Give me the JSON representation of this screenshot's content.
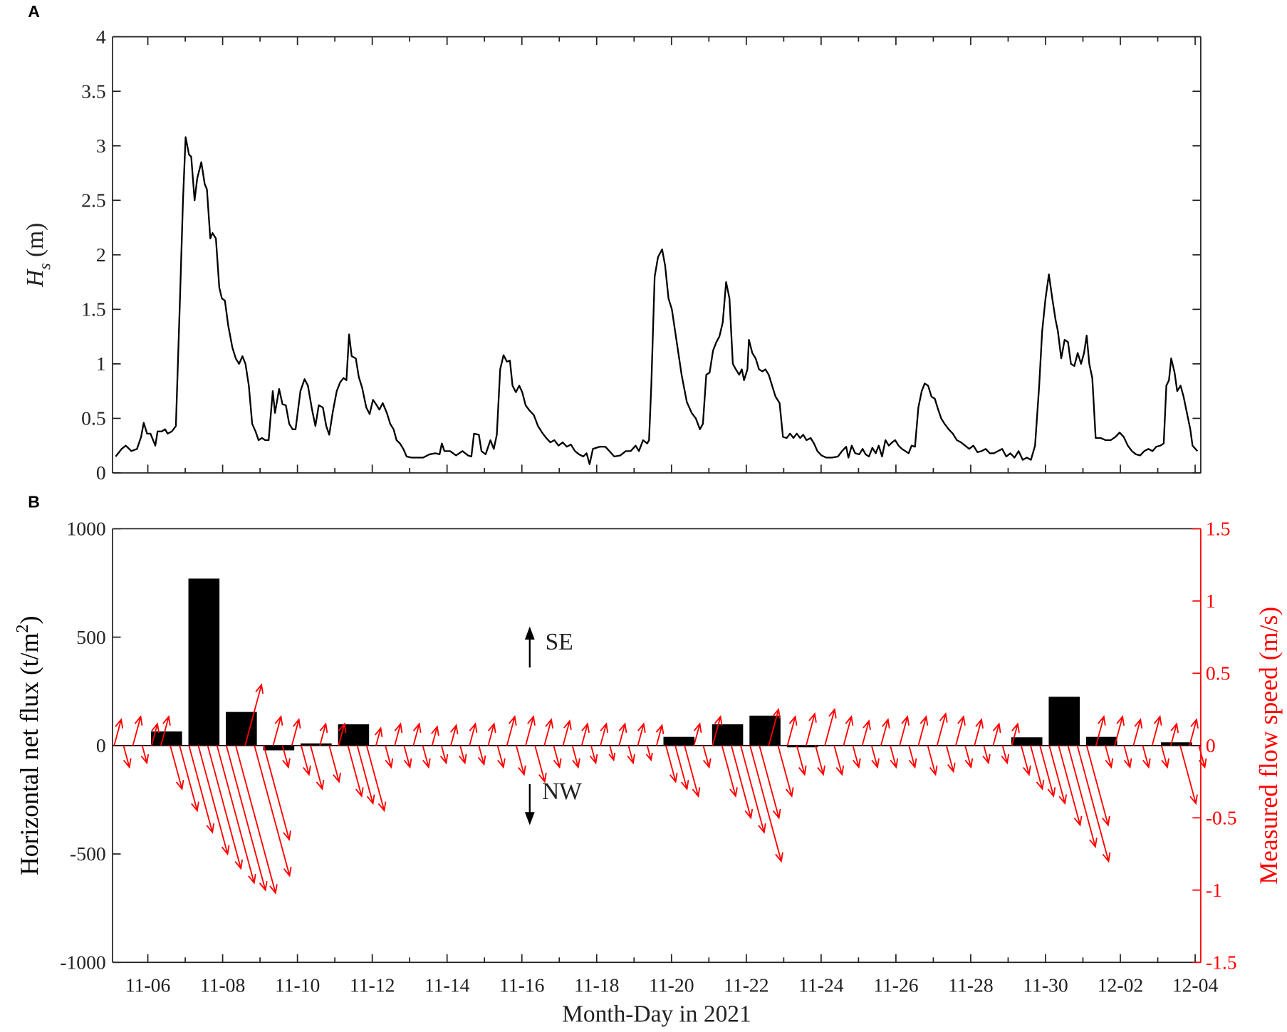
{
  "chart_data": [
    {
      "type": "line",
      "panel": "A",
      "y_label": {
        "symbol": "H",
        "subscript": "s",
        "unit": "(m)"
      },
      "color": "#000000",
      "xlim": [
        5.056,
        34.15
      ],
      "ylim": [
        0,
        4
      ],
      "yticks": [
        0,
        0.5,
        1,
        1.5,
        2,
        2.5,
        3,
        3.5,
        4
      ],
      "xticks": [
        6,
        8,
        10,
        12,
        14,
        16,
        18,
        20,
        22,
        24,
        26,
        28,
        30,
        32,
        34
      ],
      "xminorticks": [
        7,
        9,
        11,
        13,
        15,
        17,
        19,
        21,
        23,
        25,
        27,
        29,
        31,
        33
      ],
      "x": [
        5.14,
        5.3,
        5.41,
        5.56,
        5.71,
        5.82,
        5.89,
        5.98,
        6.07,
        6.2,
        6.26,
        6.37,
        6.46,
        6.53,
        6.64,
        6.75,
        6.86,
        6.94,
        7.01,
        7.1,
        7.16,
        7.25,
        7.32,
        7.43,
        7.52,
        7.58,
        7.67,
        7.73,
        7.82,
        7.91,
        7.98,
        8.06,
        8.15,
        8.26,
        8.35,
        8.44,
        8.53,
        8.61,
        8.7,
        8.79,
        8.88,
        8.96,
        9.05,
        9.14,
        9.23,
        9.34,
        9.4,
        9.51,
        9.6,
        9.69,
        9.78,
        9.87,
        9.95,
        10.08,
        10.19,
        10.28,
        10.39,
        10.48,
        10.57,
        10.68,
        10.77,
        10.85,
        10.94,
        11.05,
        11.14,
        11.23,
        11.31,
        11.38,
        11.45,
        11.56,
        11.64,
        11.73,
        11.84,
        11.93,
        12.02,
        12.1,
        12.19,
        12.28,
        12.39,
        12.48,
        12.57,
        12.65,
        12.74,
        12.83,
        12.92,
        13.05,
        13.2,
        13.36,
        13.53,
        13.69,
        13.8,
        13.86,
        13.93,
        14.08,
        14.24,
        14.41,
        14.56,
        14.65,
        14.72,
        14.85,
        14.92,
        15.03,
        15.16,
        15.25,
        15.33,
        15.42,
        15.51,
        15.6,
        15.68,
        15.75,
        15.84,
        15.93,
        16.01,
        16.1,
        16.21,
        16.32,
        16.43,
        16.54,
        16.65,
        16.76,
        16.87,
        16.98,
        17.09,
        17.2,
        17.31,
        17.42,
        17.53,
        17.64,
        17.73,
        17.81,
        17.9,
        18.08,
        18.23,
        18.34,
        18.47,
        18.63,
        18.78,
        18.91,
        19.04,
        19.13,
        19.24,
        19.35,
        19.4,
        19.46,
        19.55,
        19.64,
        19.75,
        19.83,
        19.92,
        20.01,
        20.14,
        20.27,
        20.41,
        20.54,
        20.65,
        20.76,
        20.84,
        20.93,
        21.02,
        21.11,
        21.2,
        21.28,
        21.37,
        21.46,
        21.55,
        21.64,
        21.72,
        21.81,
        21.88,
        21.94,
        22.03,
        22.07,
        22.16,
        22.25,
        22.34,
        22.43,
        22.51,
        22.6,
        22.69,
        22.78,
        22.89,
        22.98,
        23.08,
        23.17,
        23.26,
        23.35,
        23.44,
        23.52,
        23.61,
        23.72,
        23.81,
        23.9,
        24.01,
        24.14,
        24.29,
        24.45,
        24.56,
        24.67,
        24.73,
        24.82,
        24.91,
        25.02,
        25.11,
        25.19,
        25.28,
        25.37,
        25.46,
        25.54,
        25.63,
        25.72,
        25.81,
        25.9,
        25.98,
        26.07,
        26.16,
        26.25,
        26.34,
        26.42,
        26.51,
        26.6,
        26.69,
        26.77,
        26.86,
        26.95,
        27.04,
        27.13,
        27.21,
        27.3,
        27.41,
        27.52,
        27.63,
        27.74,
        27.85,
        27.96,
        28.07,
        28.18,
        28.29,
        28.4,
        28.51,
        28.62,
        28.73,
        28.84,
        28.95,
        29.06,
        29.17,
        29.28,
        29.39,
        29.5,
        29.61,
        29.72,
        29.83,
        29.91,
        30.0,
        30.09,
        30.18,
        30.27,
        30.33,
        30.42,
        30.51,
        30.6,
        30.68,
        30.77,
        30.86,
        30.95,
        31.03,
        31.1,
        31.17,
        31.25,
        31.34,
        31.47,
        31.61,
        31.74,
        31.87,
        31.98,
        32.09,
        32.2,
        32.31,
        32.42,
        32.53,
        32.64,
        32.75,
        32.86,
        32.96,
        33.07,
        33.16,
        33.23,
        33.3,
        33.36,
        33.45,
        33.52,
        33.61,
        33.69,
        33.78,
        33.87,
        33.93,
        34.06
      ],
      "values": [
        0.15,
        0.22,
        0.25,
        0.2,
        0.22,
        0.33,
        0.46,
        0.36,
        0.36,
        0.25,
        0.38,
        0.38,
        0.4,
        0.36,
        0.38,
        0.43,
        1.6,
        2.5,
        3.08,
        2.92,
        2.9,
        2.5,
        2.7,
        2.85,
        2.65,
        2.6,
        2.15,
        2.2,
        2.15,
        1.7,
        1.6,
        1.58,
        1.35,
        1.15,
        1.05,
        1.0,
        1.07,
        1.0,
        0.8,
        0.45,
        0.38,
        0.3,
        0.32,
        0.3,
        0.3,
        0.75,
        0.55,
        0.77,
        0.63,
        0.62,
        0.45,
        0.4,
        0.4,
        0.75,
        0.86,
        0.8,
        0.58,
        0.43,
        0.62,
        0.6,
        0.43,
        0.35,
        0.55,
        0.75,
        0.83,
        0.87,
        0.85,
        1.27,
        1.07,
        1.05,
        0.88,
        0.78,
        0.6,
        0.54,
        0.67,
        0.63,
        0.58,
        0.64,
        0.55,
        0.45,
        0.4,
        0.3,
        0.27,
        0.22,
        0.15,
        0.14,
        0.14,
        0.14,
        0.17,
        0.18,
        0.17,
        0.27,
        0.2,
        0.2,
        0.16,
        0.2,
        0.16,
        0.15,
        0.36,
        0.35,
        0.2,
        0.17,
        0.3,
        0.22,
        0.35,
        0.95,
        1.08,
        1.02,
        1.03,
        0.8,
        0.74,
        0.8,
        0.74,
        0.62,
        0.57,
        0.53,
        0.43,
        0.37,
        0.32,
        0.28,
        0.3,
        0.25,
        0.28,
        0.24,
        0.26,
        0.2,
        0.17,
        0.15,
        0.18,
        0.08,
        0.22,
        0.24,
        0.24,
        0.2,
        0.15,
        0.16,
        0.2,
        0.2,
        0.25,
        0.2,
        0.3,
        0.27,
        0.3,
        0.8,
        1.8,
        1.98,
        2.05,
        1.9,
        1.6,
        1.5,
        1.2,
        0.9,
        0.65,
        0.55,
        0.5,
        0.4,
        0.45,
        0.9,
        0.92,
        1.12,
        1.2,
        1.25,
        1.38,
        1.75,
        1.6,
        1.0,
        0.95,
        0.9,
        0.95,
        0.85,
        0.95,
        1.22,
        1.1,
        1.05,
        0.95,
        0.93,
        0.95,
        0.9,
        0.8,
        0.7,
        0.64,
        0.33,
        0.32,
        0.36,
        0.32,
        0.36,
        0.32,
        0.35,
        0.3,
        0.32,
        0.27,
        0.2,
        0.16,
        0.14,
        0.14,
        0.15,
        0.2,
        0.24,
        0.14,
        0.25,
        0.18,
        0.17,
        0.22,
        0.17,
        0.15,
        0.23,
        0.18,
        0.25,
        0.15,
        0.3,
        0.25,
        0.28,
        0.3,
        0.25,
        0.22,
        0.2,
        0.18,
        0.25,
        0.24,
        0.6,
        0.75,
        0.82,
        0.8,
        0.7,
        0.68,
        0.58,
        0.5,
        0.45,
        0.4,
        0.36,
        0.3,
        0.28,
        0.25,
        0.22,
        0.25,
        0.19,
        0.2,
        0.22,
        0.18,
        0.18,
        0.2,
        0.22,
        0.15,
        0.18,
        0.14,
        0.2,
        0.12,
        0.14,
        0.12,
        0.25,
        0.8,
        1.3,
        1.6,
        1.82,
        1.6,
        1.4,
        1.3,
        1.05,
        1.22,
        1.2,
        1.0,
        0.98,
        1.1,
        1.0,
        1.1,
        1.26,
        1.0,
        0.87,
        0.32,
        0.32,
        0.3,
        0.3,
        0.33,
        0.37,
        0.33,
        0.25,
        0.2,
        0.17,
        0.16,
        0.2,
        0.22,
        0.2,
        0.24,
        0.25,
        0.27,
        0.8,
        0.85,
        1.05,
        0.92,
        0.75,
        0.8,
        0.7,
        0.55,
        0.4,
        0.25,
        0.2
      ]
    },
    {
      "type": "bar",
      "panel": "B",
      "y_label": {
        "text": "Horizontal net flux (t/m",
        "superscript": "2",
        "close": ")"
      },
      "y2_label": "Measured flow speed (m/s)",
      "x_label": "Month-Day in 2021",
      "color": "#000000",
      "xlim": [
        5.056,
        34.15
      ],
      "ylim": [
        -1000,
        1000
      ],
      "yticks": [
        -1000,
        -500,
        0,
        500,
        1000
      ],
      "y2lim": [
        -1.5,
        1.5
      ],
      "y2ticks": [
        -1.5,
        -1,
        -0.5,
        0,
        0.5,
        1,
        1.5
      ],
      "xticks": [
        {
          "value": 6,
          "label": "11-06"
        },
        {
          "value": 8,
          "label": "11-08"
        },
        {
          "value": 10,
          "label": "11-10"
        },
        {
          "value": 12,
          "label": "11-12"
        },
        {
          "value": 14,
          "label": "11-14"
        },
        {
          "value": 16,
          "label": "11-16"
        },
        {
          "value": 18,
          "label": "11-18"
        },
        {
          "value": 20,
          "label": "11-20"
        },
        {
          "value": 22,
          "label": "11-22"
        },
        {
          "value": 24,
          "label": "11-24"
        },
        {
          "value": 26,
          "label": "11-26"
        },
        {
          "value": 28,
          "label": "11-28"
        },
        {
          "value": 30,
          "label": "11-30"
        },
        {
          "value": 32,
          "label": "12-02"
        },
        {
          "value": 34,
          "label": "12-04"
        }
      ],
      "xminorticks": [
        7,
        9,
        11,
        13,
        15,
        17,
        19,
        21,
        23,
        25,
        27,
        29,
        31,
        33
      ],
      "x": [
        6.5,
        7.5,
        8.5,
        9.5,
        10.5,
        11.5,
        20.2,
        21.5,
        22.5,
        23.5,
        29.5,
        30.5,
        31.5,
        33.5
      ],
      "values": [
        65,
        770,
        155,
        -22,
        10,
        98,
        40,
        98,
        138,
        -8,
        38,
        225,
        40,
        15
      ],
      "annotations": [
        "SE",
        "NW"
      ],
      "flow": {
        "axis": "y2",
        "color": "#ff0000",
        "x": [
          5.1,
          5.35,
          5.6,
          5.85,
          6.1,
          6.35,
          6.6,
          6.85,
          7.1,
          7.35,
          7.6,
          7.85,
          8.1,
          8.35,
          8.6,
          8.85,
          9.1,
          9.35,
          9.6,
          9.85,
          10.1,
          10.35,
          10.6,
          10.85,
          11.1,
          11.35,
          11.6,
          11.85,
          12.1,
          12.35,
          12.6,
          12.85,
          13.1,
          13.35,
          13.6,
          13.85,
          14.1,
          14.35,
          14.6,
          14.85,
          15.1,
          15.35,
          15.6,
          15.85,
          16.1,
          16.35,
          16.6,
          16.85,
          17.1,
          17.35,
          17.6,
          17.85,
          18.1,
          18.35,
          18.6,
          18.85,
          19.1,
          19.35,
          19.6,
          19.85,
          20.1,
          20.35,
          20.6,
          20.85,
          21.1,
          21.35,
          21.6,
          21.85,
          22.1,
          22.35,
          22.6,
          22.85,
          23.1,
          23.35,
          23.6,
          23.85,
          24.1,
          24.35,
          24.6,
          24.85,
          25.1,
          25.35,
          25.6,
          25.85,
          26.1,
          26.35,
          26.6,
          26.85,
          27.1,
          27.35,
          27.6,
          27.85,
          28.1,
          28.35,
          28.6,
          28.85,
          29.1,
          29.35,
          29.6,
          29.85,
          30.1,
          30.35,
          30.6,
          30.85,
          31.1,
          31.35,
          31.6,
          31.85,
          32.1,
          32.35,
          32.6,
          32.85,
          33.1,
          33.35,
          33.6,
          33.85,
          34.1
        ],
        "values": [
          0.18,
          -0.15,
          0.2,
          -0.12,
          0.15,
          0.2,
          -0.3,
          -0.45,
          -0.6,
          -0.75,
          -0.85,
          -0.95,
          -1.0,
          -1.02,
          0.42,
          -0.9,
          -0.65,
          0.2,
          -0.15,
          0.18,
          -0.2,
          -0.3,
          0.15,
          -0.25,
          0.15,
          -0.35,
          -0.4,
          -0.45,
          0.12,
          -0.15,
          0.15,
          -0.15,
          0.15,
          -0.15,
          0.13,
          -0.12,
          0.14,
          -0.12,
          0.15,
          -0.13,
          0.15,
          -0.15,
          0.2,
          -0.2,
          0.2,
          -0.25,
          0.18,
          -0.15,
          0.17,
          -0.15,
          0.15,
          -0.12,
          0.15,
          -0.1,
          0.15,
          -0.12,
          0.15,
          -0.1,
          0.14,
          -0.25,
          -0.3,
          -0.35,
          0.15,
          -0.15,
          0.2,
          -0.35,
          -0.5,
          -0.6,
          -0.8,
          -0.5,
          0.25,
          -0.35,
          0.2,
          -0.2,
          0.22,
          -0.2,
          0.25,
          -0.2,
          0.2,
          -0.15,
          0.17,
          -0.15,
          0.18,
          -0.15,
          0.2,
          -0.15,
          0.2,
          -0.2,
          0.22,
          -0.18,
          0.2,
          -0.15,
          0.18,
          -0.12,
          0.15,
          -0.12,
          0.15,
          -0.2,
          -0.3,
          -0.35,
          -0.4,
          -0.55,
          -0.7,
          -0.8,
          -0.55,
          0.2,
          -0.15,
          0.2,
          -0.15,
          0.18,
          -0.15,
          0.2,
          -0.15,
          0.15,
          -0.4,
          0.18,
          -0.15
        ]
      }
    }
  ]
}
